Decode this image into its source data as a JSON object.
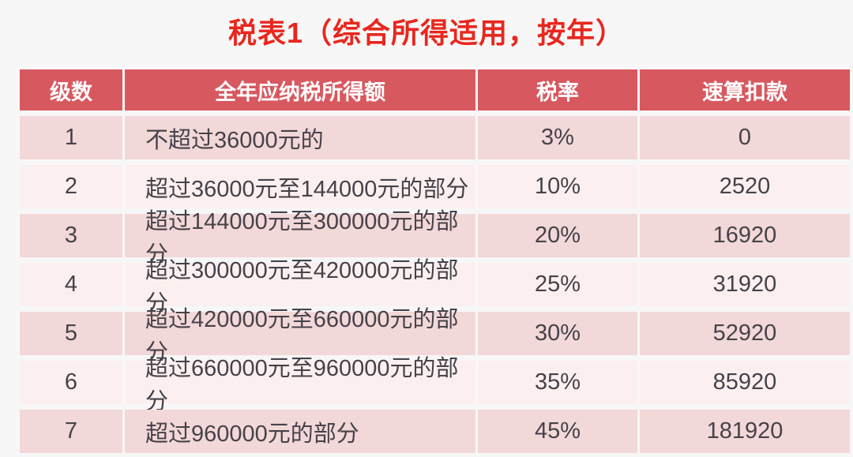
{
  "chart_data": {
    "type": "table",
    "title": "税表1（综合所得适用，按年）",
    "columns": [
      "级数",
      "全年应纳税所得额",
      "税率",
      "速算扣款"
    ],
    "rows": [
      [
        "1",
        "不超过36000元的",
        "3%",
        "0"
      ],
      [
        "2",
        "超过36000元至144000元的部分",
        "10%",
        "2520"
      ],
      [
        "3",
        "超过144000元至300000元的部分",
        "20%",
        "16920"
      ],
      [
        "4",
        "超过300000元至420000元的部分",
        "25%",
        "31920"
      ],
      [
        "5",
        "超过420000元至660000元的部分",
        "30%",
        "52920"
      ],
      [
        "6",
        "超过660000元至960000元的部分",
        "35%",
        "85920"
      ],
      [
        "7",
        "超过960000元的部分",
        "45%",
        "181920"
      ]
    ],
    "layout": {
      "legend": "none",
      "grid": "off",
      "column_alignment": [
        "center",
        "left",
        "center",
        "center"
      ]
    }
  },
  "colors": {
    "title_text": "#e8271e",
    "header_bg": "#d8585f",
    "header_text": "#ffffff",
    "row_odd_bg": "#f2d8d8",
    "row_even_bg": "#fbf0ef",
    "cell_text": "#46424a",
    "page_bg": "#f8f7f7"
  }
}
